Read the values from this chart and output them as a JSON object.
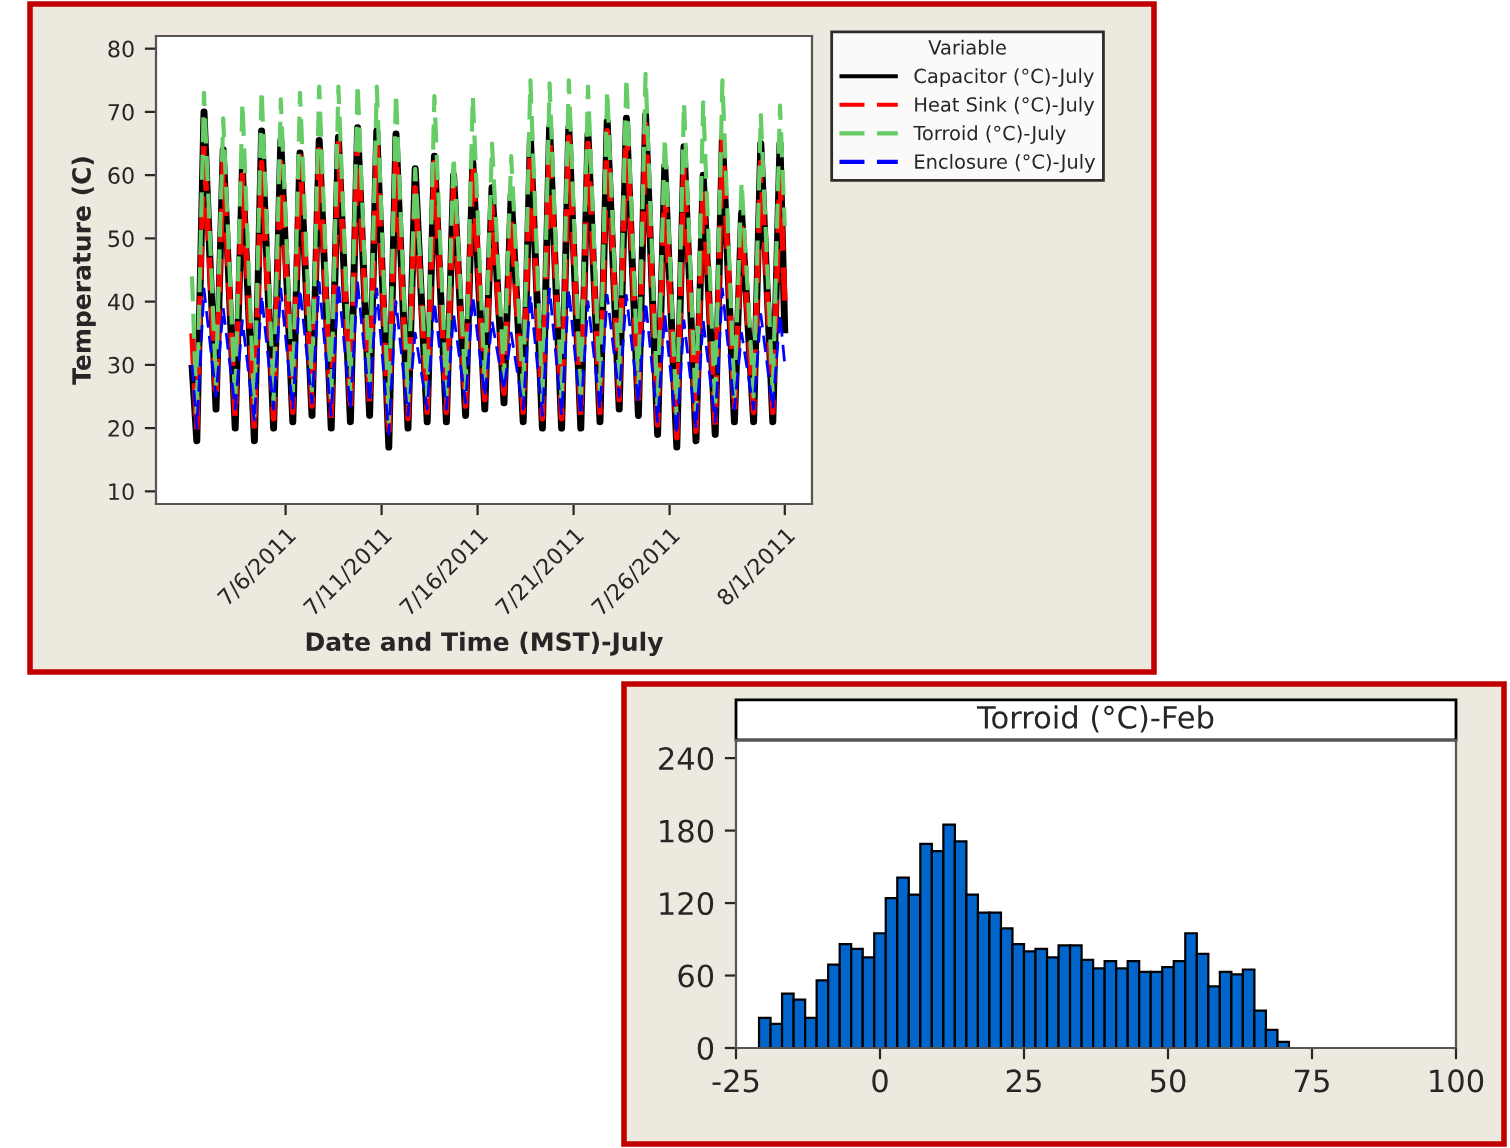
{
  "chart_data": [
    {
      "type": "line",
      "xlabel": "Date and Time (MST)-July",
      "ylabel": "Temperature (C)",
      "legend_title": "Variable",
      "legend": "right",
      "grid": false,
      "marker": "none",
      "x": [
        "2011-07-01T03:00",
        "2011-07-01T09:00",
        "2011-07-01T18:00",
        "2011-07-02T09:00",
        "2011-07-02T18:00",
        "2011-07-03T09:00",
        "2011-07-03T18:00",
        "2011-07-04T09:00",
        "2011-07-04T18:00",
        "2011-07-05T09:00",
        "2011-07-05T18:00",
        "2011-07-06T09:00",
        "2011-07-06T18:00",
        "2011-07-07T09:00",
        "2011-07-07T18:00",
        "2011-07-08T09:00",
        "2011-07-08T18:00",
        "2011-07-09T09:00",
        "2011-07-09T18:00",
        "2011-07-10T09:00",
        "2011-07-10T18:00",
        "2011-07-11T09:00",
        "2011-07-11T18:00",
        "2011-07-12T09:00",
        "2011-07-12T18:00",
        "2011-07-13T09:00",
        "2011-07-13T18:00",
        "2011-07-14T09:00",
        "2011-07-14T18:00",
        "2011-07-15T09:00",
        "2011-07-15T18:00",
        "2011-07-16T09:00",
        "2011-07-16T18:00",
        "2011-07-17T09:00",
        "2011-07-17T18:00",
        "2011-07-18T09:00",
        "2011-07-18T18:00",
        "2011-07-19T09:00",
        "2011-07-19T18:00",
        "2011-07-20T09:00",
        "2011-07-20T18:00",
        "2011-07-21T09:00",
        "2011-07-21T18:00",
        "2011-07-22T09:00",
        "2011-07-22T18:00",
        "2011-07-23T09:00",
        "2011-07-23T18:00",
        "2011-07-24T09:00",
        "2011-07-24T18:00",
        "2011-07-25T09:00",
        "2011-07-25T18:00",
        "2011-07-26T09:00",
        "2011-07-26T18:00",
        "2011-07-27T09:00",
        "2011-07-27T18:00",
        "2011-07-28T09:00",
        "2011-07-28T18:00",
        "2011-07-29T09:00",
        "2011-07-29T18:00",
        "2011-07-30T09:00",
        "2011-07-30T18:00",
        "2011-07-31T09:00",
        "2011-07-31T18:00",
        "2011-08-01T00:00"
      ],
      "xlim": [
        "2011-06-29T06:00",
        "2011-08-02T10:00"
      ],
      "xticks": [
        {
          "value": "2011-07-06",
          "label": "7/6/2011"
        },
        {
          "value": "2011-07-11",
          "label": "7/11/2011"
        },
        {
          "value": "2011-07-16",
          "label": "7/16/2011"
        },
        {
          "value": "2011-07-21",
          "label": "7/21/2011"
        },
        {
          "value": "2011-07-26",
          "label": "7/26/2011"
        },
        {
          "value": "2011-08-01",
          "label": "8/1/2011"
        }
      ],
      "ylim": [
        8,
        82
      ],
      "yticks": [
        10,
        20,
        30,
        40,
        50,
        60,
        70,
        80
      ],
      "series": [
        {
          "name": "Capacitor (°C)-July",
          "color": "#000000",
          "line_style": "solid",
          "values": [
            30,
            18,
            70,
            23,
            64,
            20,
            61,
            18,
            67,
            20,
            65.5,
            21,
            63.5,
            22,
            65.5,
            20,
            66,
            21,
            67.5,
            22,
            67,
            17,
            66.5,
            20,
            61,
            21,
            63,
            21,
            60,
            22,
            62,
            23,
            58,
            24,
            57,
            21,
            66,
            20,
            67.5,
            20,
            67.5,
            20,
            66.5,
            21,
            68.5,
            23,
            69,
            22,
            69.5,
            19,
            61.5,
            17,
            64.5,
            18,
            60,
            19,
            66,
            21,
            54,
            21,
            65,
            21,
            65,
            35
          ]
        },
        {
          "name": "Heat Sink (°C)-July",
          "color": "#ff0000",
          "line_style": "dashed",
          "values": [
            35,
            19.5,
            65,
            24.5,
            62,
            21.5,
            60,
            19.5,
            62,
            21.5,
            62,
            22.5,
            63,
            23.5,
            64,
            21.5,
            65,
            22.5,
            66,
            23.5,
            65,
            18.5,
            64,
            21.5,
            58,
            22.5,
            62,
            22.5,
            58,
            23.5,
            62,
            24.5,
            55,
            25.5,
            53,
            22.5,
            64,
            21.5,
            66,
            21.5,
            66,
            21.5,
            65,
            22.5,
            67,
            24.5,
            68,
            23.5,
            68,
            20.5,
            58,
            18.5,
            62,
            19.5,
            58,
            20.5,
            66,
            22.5,
            52,
            22.5,
            62,
            22.5,
            60,
            40
          ]
        },
        {
          "name": "Torroid (°C)-July",
          "color": "#66cc66",
          "line_style": "dashed",
          "values": [
            44,
            22,
            73,
            27,
            69,
            24,
            71.5,
            22,
            73.5,
            24,
            72,
            25,
            73,
            26,
            74,
            24,
            74,
            25,
            74.5,
            26,
            74,
            21,
            73,
            24,
            61,
            25,
            72.5,
            25,
            63,
            26,
            72.5,
            27,
            65,
            28,
            63,
            25,
            75,
            24,
            74.5,
            24,
            75,
            24,
            74,
            25,
            73.5,
            27,
            75.5,
            26,
            76,
            23,
            66,
            21,
            71.5,
            22,
            71.5,
            23,
            75,
            25,
            59,
            25,
            69.5,
            25,
            71,
            52
          ]
        },
        {
          "name": "Enclosure (°C)-July",
          "color": "#0000ff",
          "line_style": "dashed",
          "values": [
            30,
            20,
            42,
            25,
            39,
            23,
            37,
            21,
            41,
            23,
            42,
            23,
            42,
            24,
            43,
            22,
            43,
            23,
            43,
            24,
            42,
            19,
            40,
            22,
            35,
            23,
            40,
            23,
            38,
            24,
            41,
            25,
            37,
            26,
            35,
            23,
            41,
            22,
            42,
            22,
            42,
            22,
            40,
            23,
            41,
            25,
            41,
            24,
            40,
            21,
            38,
            19,
            37,
            20,
            37,
            21,
            42,
            23,
            35,
            23,
            38,
            23,
            38,
            30
          ]
        }
      ]
    },
    {
      "type": "histogram",
      "title": "Torroid (°C)-Feb",
      "grid": false,
      "color": "#0066cc",
      "bins": [
        -21,
        -19,
        -17,
        -15,
        -13,
        -11,
        -9,
        -7,
        -5,
        -3,
        -1,
        1,
        3,
        5,
        7,
        9,
        11,
        13,
        15,
        17,
        19,
        21,
        23,
        25,
        27,
        29,
        31,
        33,
        35,
        37,
        39,
        41,
        43,
        45,
        47,
        49,
        51,
        53,
        55,
        57,
        59,
        61,
        63,
        65,
        67,
        69,
        71
      ],
      "values": [
        25,
        20,
        45,
        40,
        25,
        56,
        69,
        86,
        82,
        75,
        95,
        124,
        141,
        127,
        169,
        163,
        185,
        171,
        127,
        112,
        112,
        99,
        86,
        80,
        82,
        75,
        85,
        85,
        73,
        66,
        72,
        66,
        72,
        63,
        63,
        67,
        72,
        95,
        78,
        51,
        63,
        61,
        65,
        31,
        15,
        5
      ],
      "xlim": [
        -25,
        100
      ],
      "xticks": [
        -25,
        0,
        25,
        50,
        75,
        100
      ],
      "ylim": [
        0,
        255
      ],
      "yticks": [
        0,
        60,
        120,
        180,
        240
      ]
    }
  ]
}
